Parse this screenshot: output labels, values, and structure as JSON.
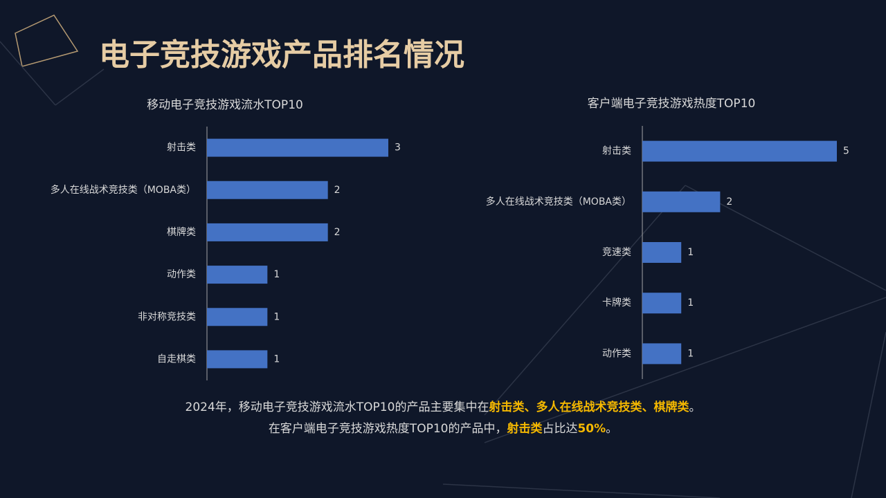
{
  "title": "电子竞技游戏产品排名情况",
  "chart_data": [
    {
      "type": "bar",
      "orientation": "horizontal",
      "title": "移动电子竞技游戏流水TOP10",
      "categories": [
        "射击类",
        "多人在线战术竞技类（MOBA类）",
        "棋牌类",
        "动作类",
        "非对称竞技类",
        "自走棋类"
      ],
      "values": [
        3,
        2,
        2,
        1,
        1,
        1
      ],
      "color": "#4472c4"
    },
    {
      "type": "bar",
      "orientation": "horizontal",
      "title": "客户端电子竞技游戏热度TOP10",
      "categories": [
        "射击类",
        "多人在线战术竞技类（MOBA类）",
        "竞速类",
        "卡牌类",
        "动作类"
      ],
      "values": [
        5,
        2,
        1,
        1,
        1
      ],
      "color": "#4472c4"
    }
  ],
  "summary": [
    [
      "2024年，移动电子竞技游戏流水TOP10的产品主要集中在",
      "射击类、多人在线战术竞技类、棋牌类",
      "。"
    ],
    [
      "在客户端电子竞技游戏热度TOP10的产品中，",
      "射击类",
      "占比达",
      "50%",
      "。"
    ]
  ]
}
